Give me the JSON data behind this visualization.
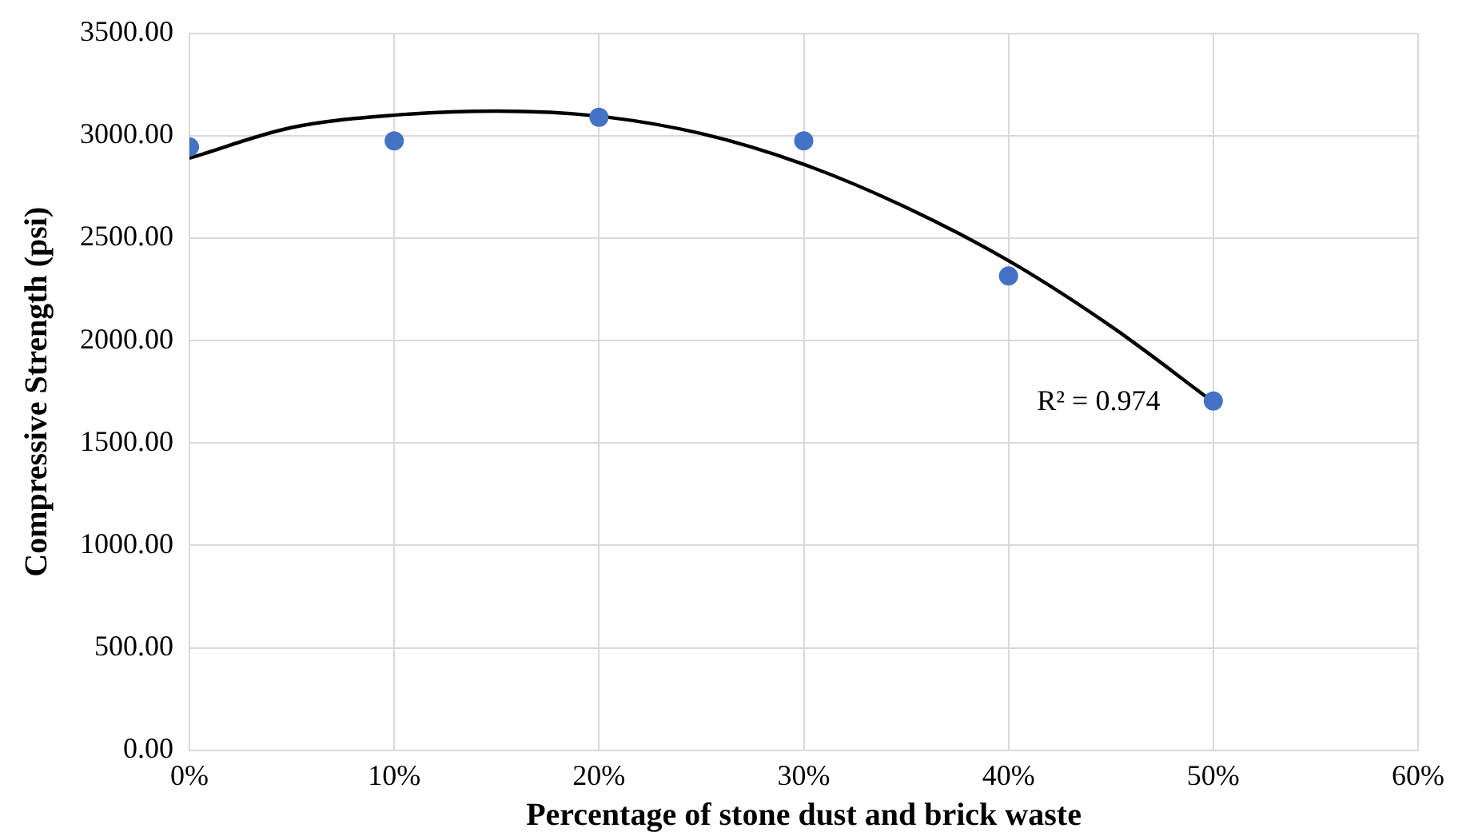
{
  "chart_data": {
    "type": "scatter",
    "xlabel": "Percentage of stone dust and brick waste",
    "ylabel": "Compressive Strength (psi)",
    "series": [
      {
        "color": "#4472c4",
        "marker": "circle",
        "x": [
          0,
          10,
          20,
          30,
          40,
          50
        ],
        "values": [
          2945,
          2975,
          3090,
          2975,
          2315,
          1705
        ]
      },
      {
        "type": "line",
        "color": "#000000",
        "marker": "none",
        "x": [
          0,
          5,
          10,
          15,
          20,
          25,
          30,
          35,
          40,
          45,
          50
        ],
        "values": [
          2890,
          3040,
          3100,
          3120,
          3095,
          3010,
          2860,
          2650,
          2390,
          2070,
          1700
        ]
      }
    ],
    "xlim": [
      0,
      60
    ],
    "xticks": [
      {
        "value": 0,
        "label": "0%"
      },
      {
        "value": 10,
        "label": "10%"
      },
      {
        "value": 20,
        "label": "20%"
      },
      {
        "value": 30,
        "label": "30%"
      },
      {
        "value": 40,
        "label": "40%"
      },
      {
        "value": 50,
        "label": "50%"
      },
      {
        "value": 60,
        "label": "60%"
      }
    ],
    "ylim": [
      0,
      3500
    ],
    "yticks": [
      {
        "value": 0,
        "label": "0.00"
      },
      {
        "value": 500,
        "label": "500.00"
      },
      {
        "value": 1000,
        "label": "1000.00"
      },
      {
        "value": 1500,
        "label": "1500.00"
      },
      {
        "value": 2000,
        "label": "2000.00"
      },
      {
        "value": 2500,
        "label": "2500.00"
      },
      {
        "value": 3000,
        "label": "3000.00"
      },
      {
        "value": 3500,
        "label": "3500.00"
      }
    ],
    "grid": true,
    "legend": false,
    "annotations": [
      "R² = 0.974"
    ]
  }
}
